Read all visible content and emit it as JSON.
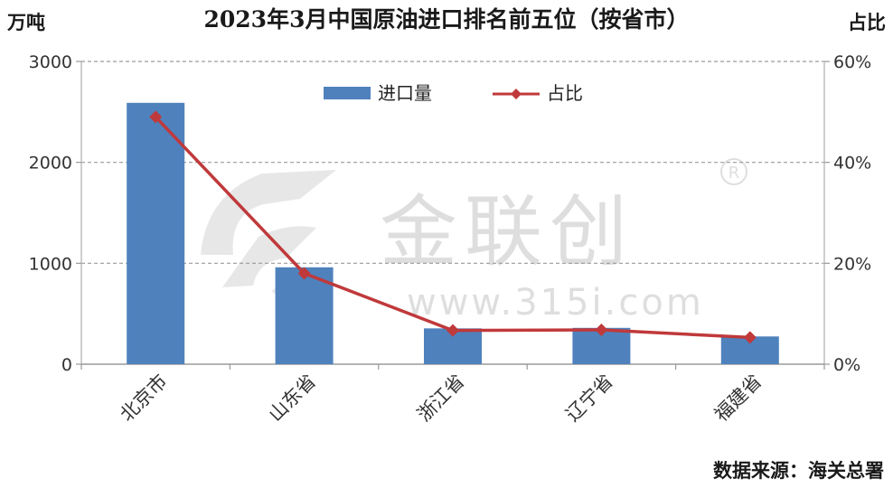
{
  "chart_data": {
    "type": "bar+line",
    "title": "2023年3月中国原油进口排名前五位（按省市）",
    "y_left_label": "万吨",
    "y_right_label": "占比",
    "categories": [
      "北京市",
      "山东省",
      "浙江省",
      "辽宁省",
      "福建省"
    ],
    "series": [
      {
        "name": "进口量",
        "kind": "bar",
        "axis": "left",
        "color": "#4F81BD",
        "values": [
          2590,
          960,
          355,
          360,
          275
        ]
      },
      {
        "name": "占比",
        "kind": "line",
        "axis": "right",
        "color": "#C0393B",
        "values": [
          0.49,
          0.18,
          0.067,
          0.068,
          0.053
        ]
      }
    ],
    "y_left_ticks": [
      "0",
      "1000",
      "2000",
      "3000"
    ],
    "y_left_range": [
      0,
      3000
    ],
    "y_right_ticks": [
      "0%",
      "20%",
      "40%",
      "60%"
    ],
    "y_right_range": [
      0,
      0.6
    ],
    "grid": true,
    "legend_position": "top-center"
  },
  "source_note": "数据来源：海关总署",
  "watermark": {
    "brand": "金联创",
    "url": "www.315i.com",
    "registered": "R"
  }
}
